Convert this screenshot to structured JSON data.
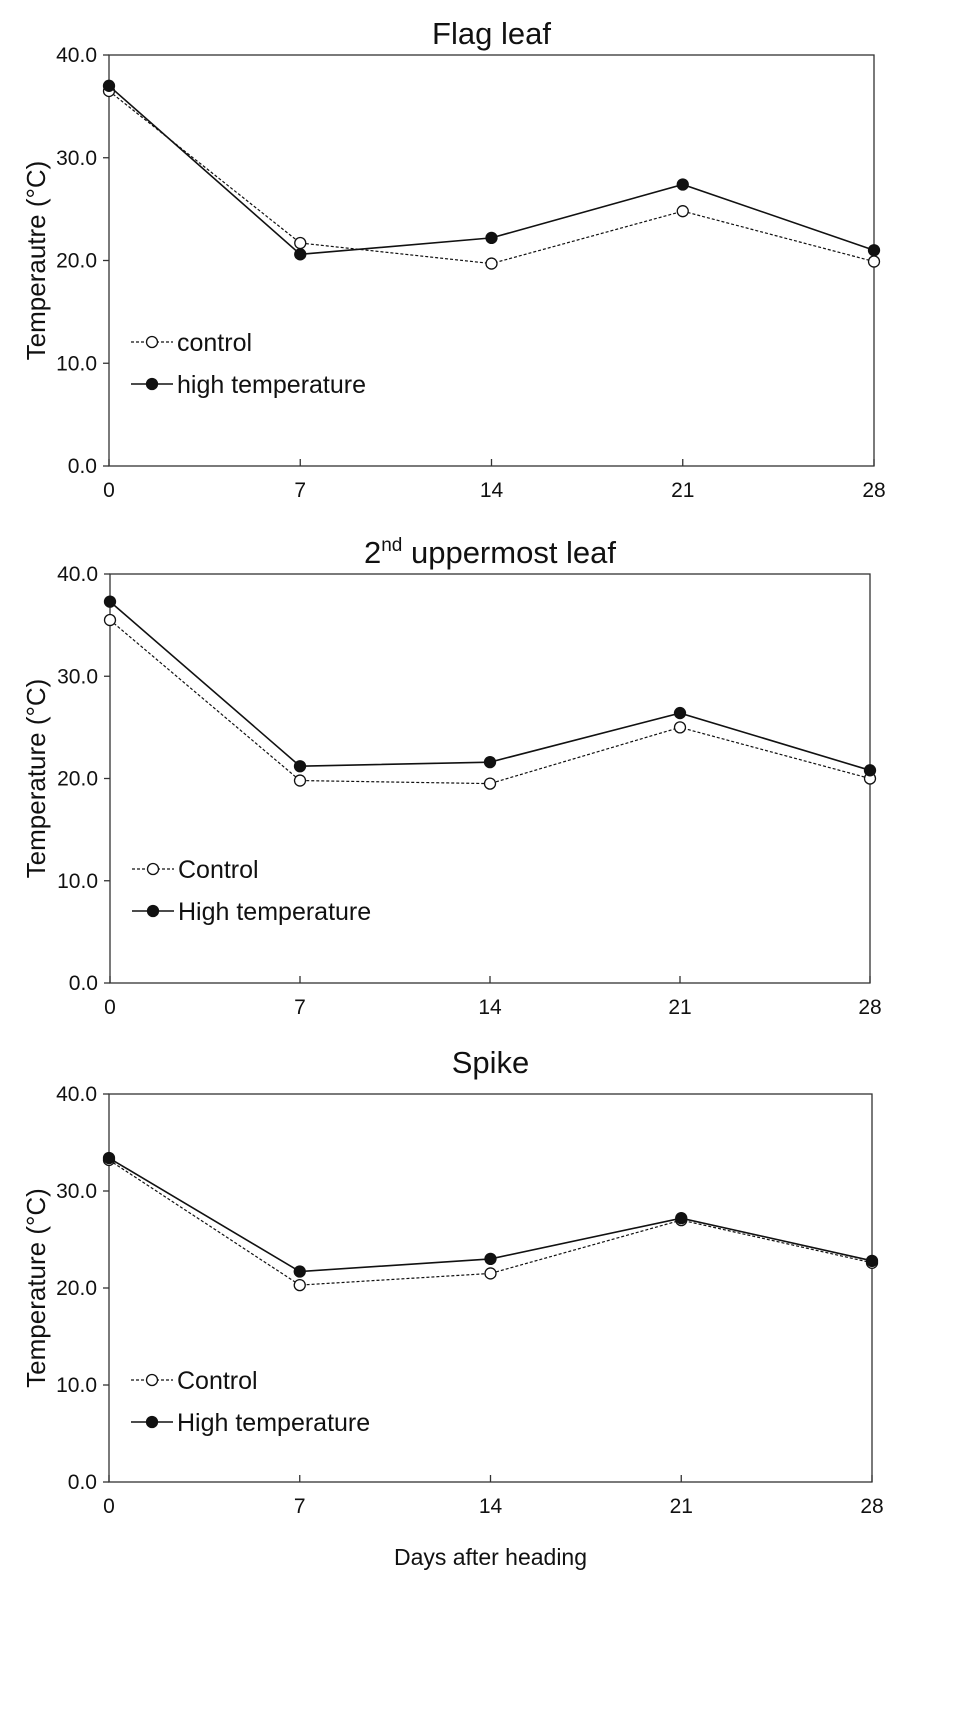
{
  "chart_data": [
    {
      "type": "line",
      "title": "Flag leaf",
      "ylabel": "Temperautre (°C)",
      "xlabel": "",
      "x": [
        0,
        7,
        14,
        21,
        28
      ],
      "ylim": [
        0,
        40
      ],
      "yticks": [
        "0.0",
        "10.0",
        "20.0",
        "30.0",
        "40.0"
      ],
      "xticks": [
        "0",
        "7",
        "14",
        "21",
        "28"
      ],
      "series": [
        {
          "name": "control",
          "values": [
            36.5,
            21.7,
            19.7,
            24.8,
            19.9
          ],
          "marker": "open-circle",
          "line": "dashed"
        },
        {
          "name": "high temperature",
          "values": [
            37.0,
            20.6,
            22.2,
            27.4,
            21.0
          ],
          "marker": "filled-circle",
          "line": "solid"
        }
      ]
    },
    {
      "type": "line",
      "title": "2",
      "title_superscript": "nd",
      "title_rest": " uppermost leaf",
      "ylabel": "Temperature (°C)",
      "xlabel": "",
      "x": [
        0,
        7,
        14,
        21,
        28
      ],
      "ylim": [
        0,
        40
      ],
      "yticks": [
        "0.0",
        "10.0",
        "20.0",
        "30.0",
        "40.0"
      ],
      "xticks": [
        "0",
        "7",
        "14",
        "21",
        "28"
      ],
      "series": [
        {
          "name": "Control",
          "values": [
            35.5,
            19.8,
            19.5,
            25.0,
            20.0
          ],
          "marker": "open-circle",
          "line": "dashed"
        },
        {
          "name": "High temperature",
          "values": [
            37.3,
            21.2,
            21.6,
            26.4,
            20.8
          ],
          "marker": "filled-circle",
          "line": "solid"
        }
      ]
    },
    {
      "type": "line",
      "title": "Spike",
      "ylabel": "Temperature (°C)",
      "xlabel": "Days after heading",
      "x": [
        0,
        7,
        14,
        21,
        28
      ],
      "ylim": [
        0,
        40
      ],
      "yticks": [
        "0.0",
        "10.0",
        "20.0",
        "30.0",
        "40.0"
      ],
      "xticks": [
        "0",
        "7",
        "14",
        "21",
        "28"
      ],
      "series": [
        {
          "name": "Control",
          "values": [
            33.2,
            20.3,
            21.5,
            27.0,
            22.6
          ],
          "marker": "open-circle",
          "line": "dashed"
        },
        {
          "name": "High temperature",
          "values": [
            33.4,
            21.7,
            23.0,
            27.2,
            22.8
          ],
          "marker": "filled-circle",
          "line": "solid"
        }
      ]
    }
  ]
}
